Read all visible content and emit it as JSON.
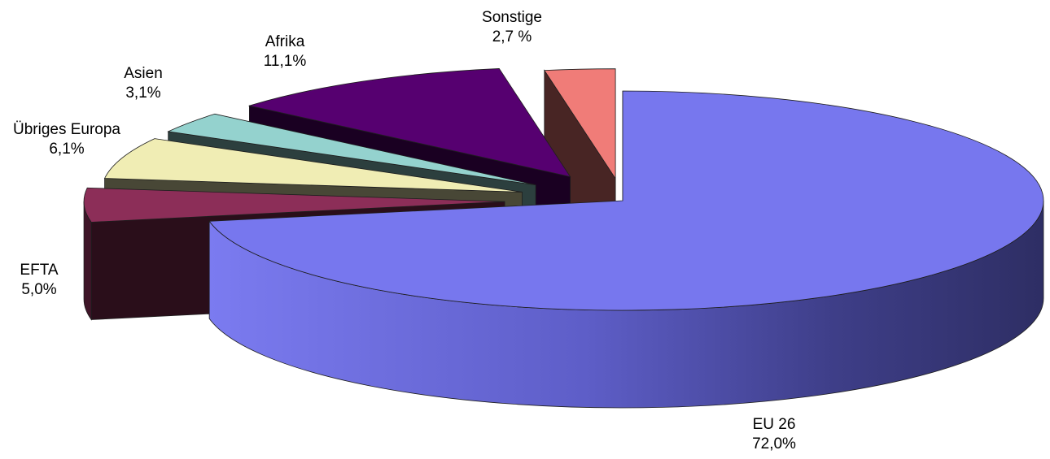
{
  "chart_data": {
    "type": "pie",
    "style": "3d-exploded",
    "categories": [
      "EU 26",
      "EFTA",
      "Übriges Europa",
      "Asien",
      "Afrika",
      "Sonstige"
    ],
    "values": [
      72.0,
      5.0,
      6.1,
      3.1,
      11.1,
      2.7
    ],
    "value_labels": [
      "72,0%",
      "5,0%",
      "6,1%",
      "3,1%",
      "11,1%",
      "2,7 %"
    ],
    "colors": {
      "EU 26": "#7777EE",
      "EFTA": "#8C2E58",
      "Übriges Europa": "#F0EDB4",
      "Asien": "#94D2CE",
      "Afrika": "#560070",
      "Sonstige": "#F07C78"
    },
    "title": "",
    "legend": "none",
    "grid": false
  }
}
